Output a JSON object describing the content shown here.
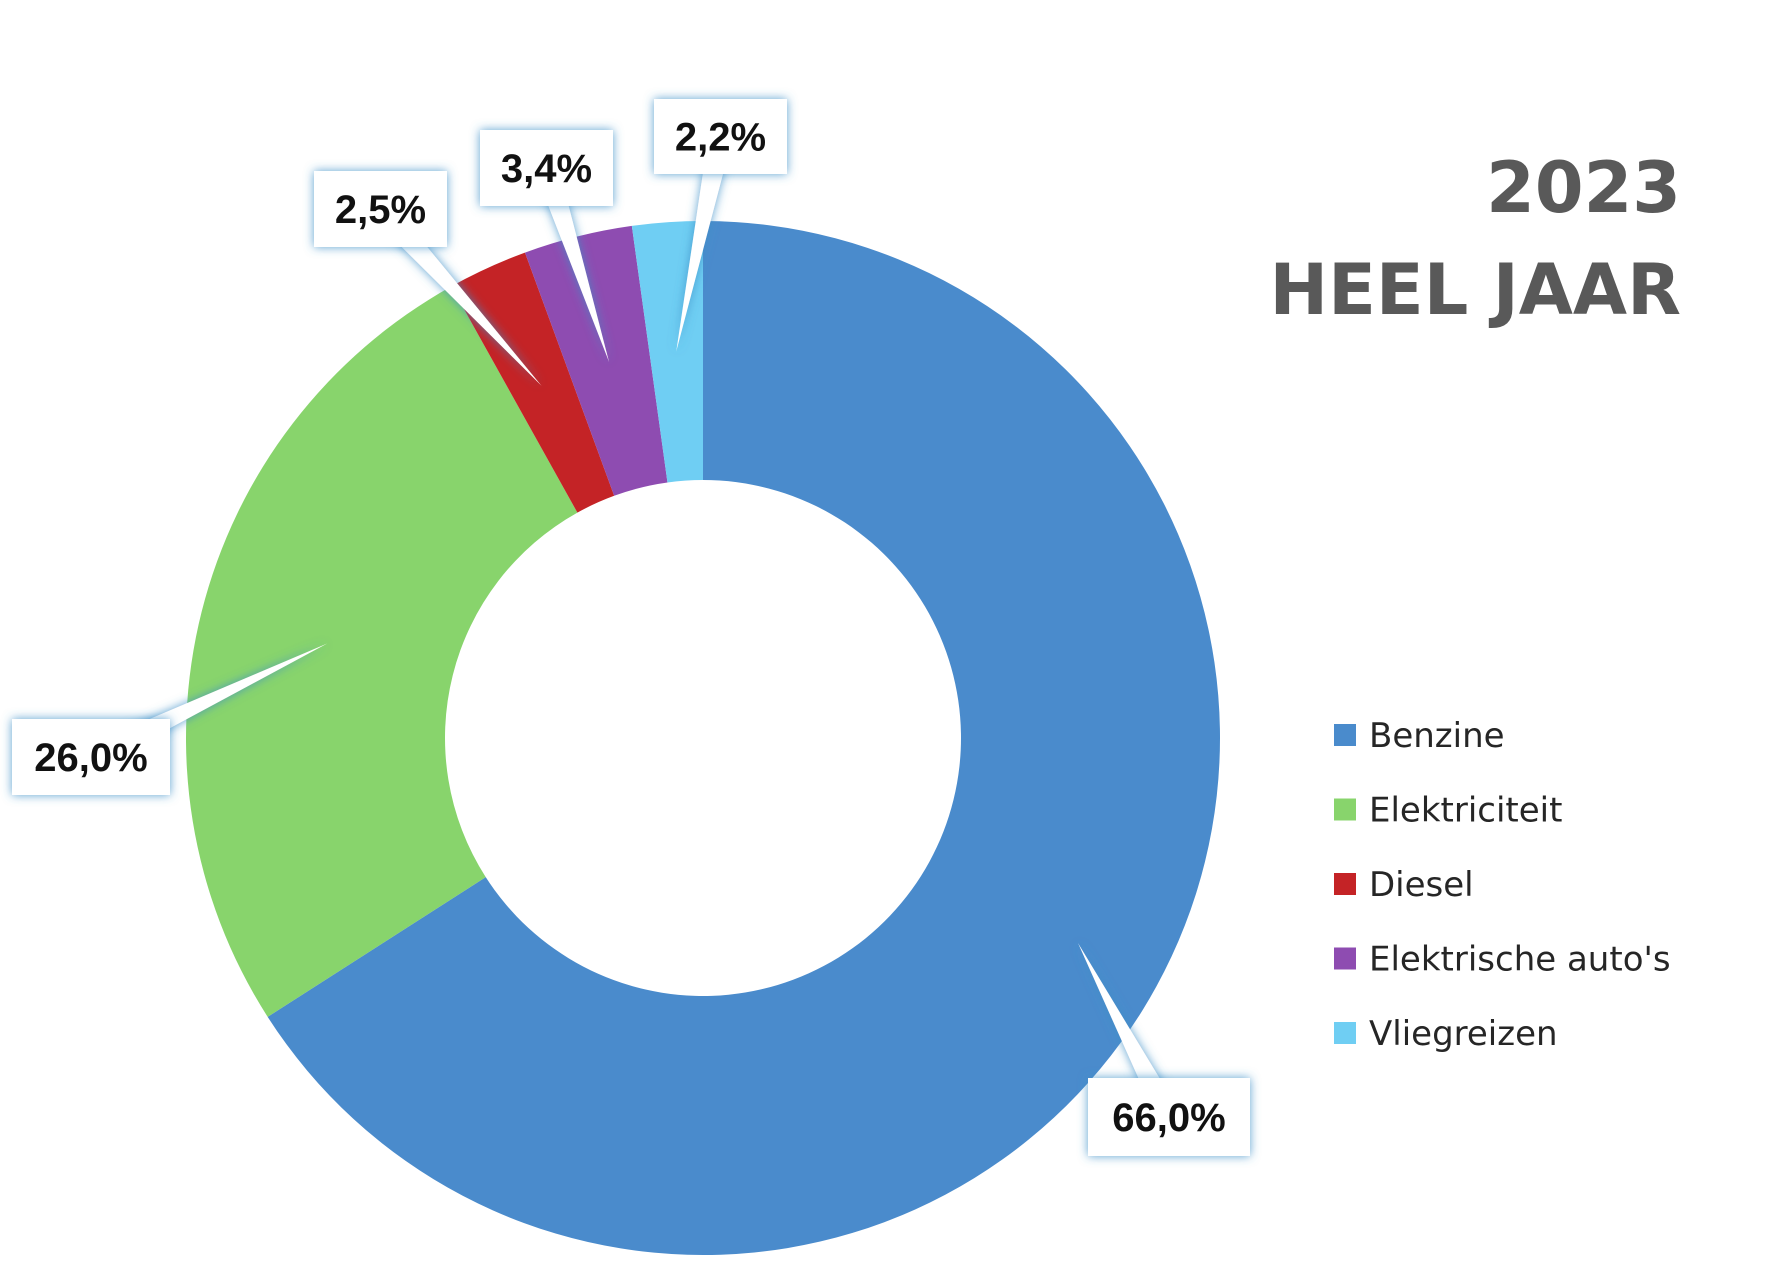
{
  "title": {
    "line1": "2023",
    "line2": "HEEL JAAR"
  },
  "chart_data": {
    "type": "pie",
    "variant": "donut",
    "title": "2023 HEEL JAAR",
    "categories": [
      "Benzine",
      "Elektriciteit",
      "Diesel",
      "Elektrische auto's",
      "Vliegreizen"
    ],
    "values": [
      66.0,
      26.0,
      2.5,
      3.4,
      2.2
    ],
    "data_labels": [
      "66,0%",
      "26,0%",
      "2,5%",
      "3,4%",
      "2,2%"
    ],
    "colors": [
      "#4A8BCC",
      "#88D46C",
      "#C42326",
      "#8E4CB1",
      "#6FCEF3"
    ],
    "legend_position": "right",
    "start_angle": "12 o'clock, clockwise"
  }
}
